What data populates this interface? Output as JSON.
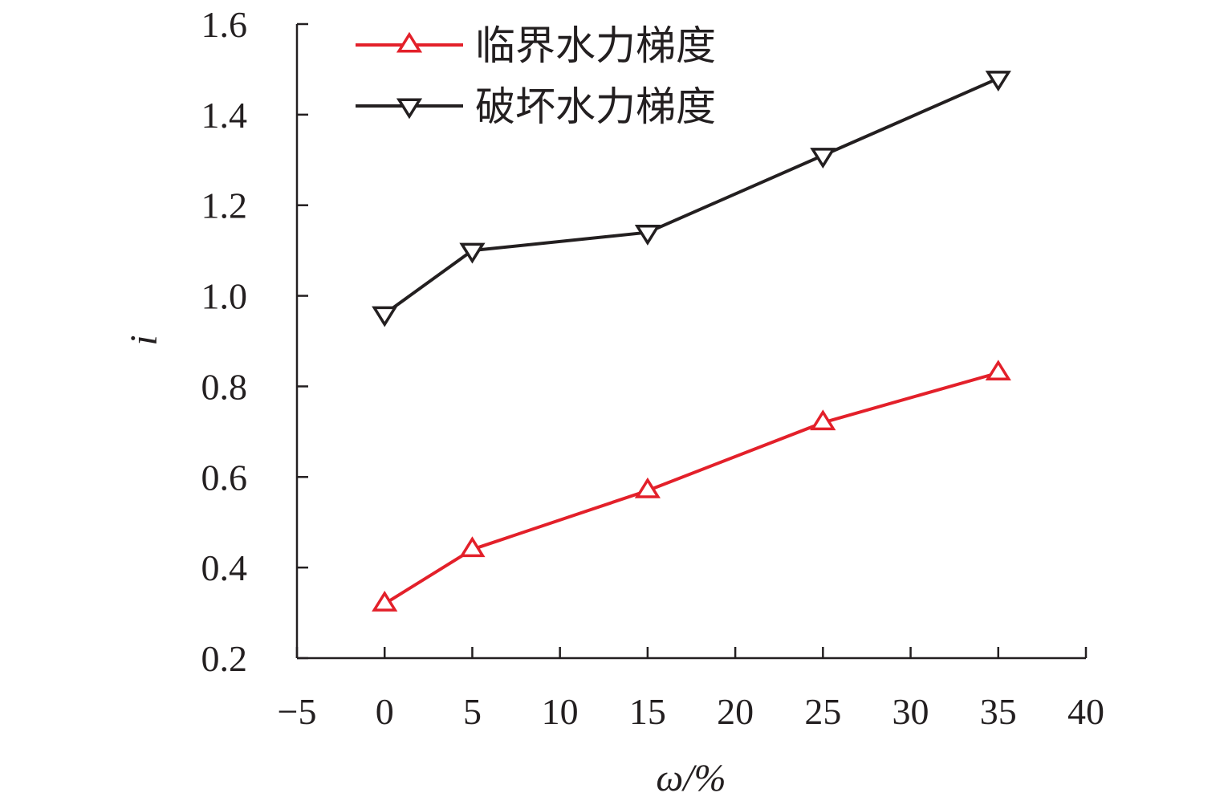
{
  "chart_data": {
    "type": "line",
    "title": "",
    "xlabel": "ω/%",
    "ylabel": "i",
    "xlim": [
      -5,
      40
    ],
    "ylim": [
      0.2,
      1.6
    ],
    "x_ticks": [
      -5,
      0,
      5,
      10,
      15,
      20,
      25,
      30,
      35,
      40
    ],
    "x_tick_labels": [
      "−5",
      "0",
      "5",
      "10",
      "15",
      "20",
      "25",
      "30",
      "35",
      "40"
    ],
    "y_ticks": [
      0.2,
      0.4,
      0.6,
      0.8,
      1.0,
      1.2,
      1.4,
      1.6
    ],
    "y_tick_labels": [
      "0.2",
      "0.4",
      "0.6",
      "0.8",
      "1.0",
      "1.2",
      "1.4",
      "1.6"
    ],
    "grid": false,
    "legend_position": "top-left",
    "x": [
      0,
      5,
      15,
      25,
      35
    ],
    "series": [
      {
        "name": "临界水力梯度",
        "color": "#e3202a",
        "marker": "triangle-up",
        "values": [
          0.32,
          0.44,
          0.57,
          0.72,
          0.83
        ]
      },
      {
        "name": "破坏水力梯度",
        "color": "#231f20",
        "marker": "triangle-down",
        "values": [
          0.96,
          1.1,
          1.14,
          1.31,
          1.48
        ]
      }
    ]
  }
}
